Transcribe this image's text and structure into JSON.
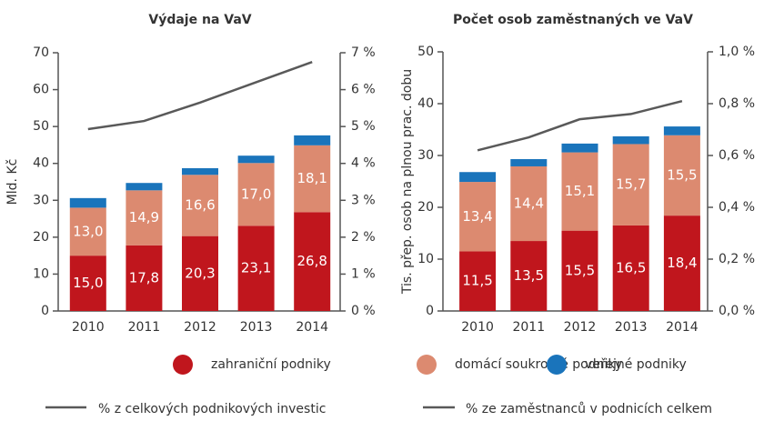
{
  "chart_data": [
    {
      "type": "bar",
      "title": "Výdaje na VaV",
      "ylabel": "Mld. Kč",
      "categories": [
        "2010",
        "2011",
        "2012",
        "2013",
        "2014"
      ],
      "ylim": [
        0,
        70
      ],
      "yticks": [
        0,
        10,
        20,
        30,
        40,
        50,
        60,
        70
      ],
      "y2lim": [
        0,
        7
      ],
      "y2ticks": [
        {
          "value": 0,
          "label": "0 %"
        },
        {
          "value": 1,
          "label": "1 %"
        },
        {
          "value": 2,
          "label": "2 %"
        },
        {
          "value": 3,
          "label": "3 %"
        },
        {
          "value": 4,
          "label": "4 %"
        },
        {
          "value": 5,
          "label": "5 %"
        },
        {
          "value": 6,
          "label": "6 %"
        },
        {
          "value": 7,
          "label": "7 %"
        }
      ],
      "series": [
        {
          "name": "zahraniční podniky",
          "color": "#c0161d",
          "values": [
            15.0,
            17.8,
            20.3,
            23.1,
            26.8
          ],
          "value_labels": [
            "15,0",
            "17,8",
            "20,3",
            "23,1",
            "26,8"
          ]
        },
        {
          "name": "domácí soukromé podniky",
          "color": "#dc8a70",
          "values": [
            13.0,
            14.9,
            16.6,
            17.0,
            18.1
          ],
          "value_labels": [
            "13,0",
            "14,9",
            "16,6",
            "17,0",
            "18,1"
          ]
        },
        {
          "name": "veřejné podniky",
          "color": "#1a74bb",
          "values": [
            2.6,
            2.0,
            1.8,
            2.0,
            2.7
          ]
        },
        {
          "name": "% z celkových podnikových investic",
          "color": "#595959",
          "type": "line",
          "axis": "y2",
          "values": [
            4.93,
            5.15,
            5.65,
            6.2,
            6.75
          ]
        }
      ]
    },
    {
      "type": "bar",
      "title": "Počet osob zaměstnaných ve VaV",
      "ylabel": "Tis. přep. osob na plnou prac. dobu",
      "categories": [
        "2010",
        "2011",
        "2012",
        "2013",
        "2014"
      ],
      "ylim": [
        0,
        50
      ],
      "yticks": [
        0,
        10,
        20,
        30,
        40,
        50
      ],
      "y2lim": [
        0,
        1.0
      ],
      "y2ticks": [
        {
          "value": 0,
          "label": "0,0 %"
        },
        {
          "value": 0.2,
          "label": "0,2 %"
        },
        {
          "value": 0.4,
          "label": "0,4 %"
        },
        {
          "value": 0.6,
          "label": "0,6 %"
        },
        {
          "value": 0.8,
          "label": "0,8 %"
        },
        {
          "value": 1.0,
          "label": "1,0 %"
        }
      ],
      "series": [
        {
          "name": "zahraniční podniky",
          "color": "#c0161d",
          "values": [
            11.5,
            13.5,
            15.5,
            16.5,
            18.4
          ],
          "value_labels": [
            "11,5",
            "13,5",
            "15,5",
            "16,5",
            "18,4"
          ]
        },
        {
          "name": "domácí soukromé podniky",
          "color": "#dc8a70",
          "values": [
            13.4,
            14.4,
            15.1,
            15.7,
            15.5
          ],
          "value_labels": [
            "13,4",
            "14,4",
            "15,1",
            "15,7",
            "15,5"
          ]
        },
        {
          "name": "veřejné podniky",
          "color": "#1a74bb",
          "values": [
            1.9,
            1.4,
            1.7,
            1.5,
            1.7
          ]
        },
        {
          "name": "% ze zaměstnanců v podnicích celkem",
          "color": "#595959",
          "type": "line",
          "axis": "y2",
          "values": [
            0.62,
            0.67,
            0.74,
            0.76,
            0.81
          ]
        }
      ]
    }
  ]
}
